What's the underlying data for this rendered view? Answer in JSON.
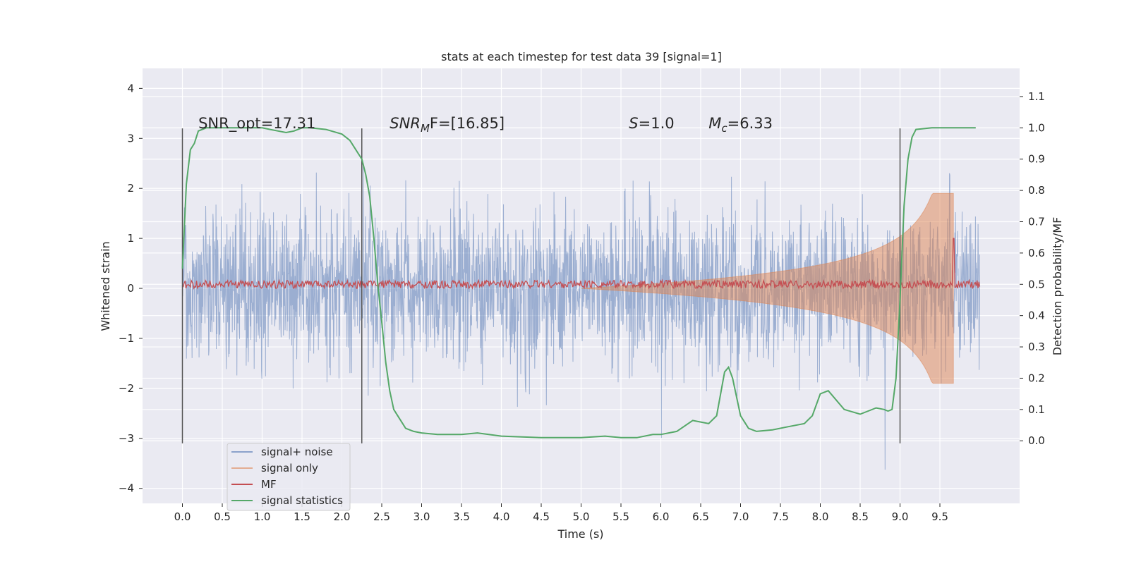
{
  "chart_data": {
    "type": "line",
    "title": "stats at each timestep for test data 39 [signal=1]",
    "xlabel": "Time (s)",
    "ylabel": "Whitened strain",
    "ylabel_right": "Detection probability/MF",
    "xlim": [
      -0.5,
      10.5
    ],
    "ylim": [
      -4.3,
      4.4
    ],
    "ylim_right": [
      -0.2,
      1.19
    ],
    "x_ticks": [
      0.0,
      0.5,
      1.0,
      1.5,
      2.0,
      2.5,
      3.0,
      3.5,
      4.0,
      4.5,
      5.0,
      5.5,
      6.0,
      6.5,
      7.0,
      7.5,
      8.0,
      8.5,
      9.0,
      9.5
    ],
    "x_tick_labels": [
      "0.0",
      "0.5",
      "1.0",
      "1.5",
      "2.0",
      "2.5",
      "3.0",
      "3.5",
      "4.0",
      "4.5",
      "5.0",
      "5.5",
      "6.0",
      "6.5",
      "7.0",
      "7.5",
      "8.0",
      "8.5",
      "9.0",
      "9.5"
    ],
    "y_ticks": [
      -4,
      -3,
      -2,
      -1,
      0,
      1,
      2,
      3,
      4
    ],
    "y_tick_labels": [
      "−4",
      "−3",
      "−2",
      "−1",
      "0",
      "1",
      "2",
      "3",
      "4"
    ],
    "y_ticks_right": [
      0.0,
      0.1,
      0.2,
      0.3,
      0.4,
      0.5,
      0.6,
      0.7,
      0.8,
      0.9,
      1.0,
      1.1
    ],
    "y_tick_labels_right": [
      "0.0",
      "0.1",
      "0.2",
      "0.3",
      "0.4",
      "0.5",
      "0.6",
      "0.7",
      "0.8",
      "0.9",
      "1.0",
      "1.1"
    ],
    "grid": true,
    "legend_position": "lower-left",
    "colors": {
      "signal_noise": "#4c72b0",
      "signal_only": "#dd8452",
      "mf": "#c44e52",
      "statistics": "#55a868",
      "vlines": "#555555",
      "background": "#eaeaf2"
    },
    "annotations": [
      {
        "text": "SNR_opt=17.31",
        "x": 0.2,
        "y": 3.2
      },
      {
        "text": "SNR",
        "sub": "M",
        "rest": "F=[16.85]",
        "italic_head": true,
        "x": 2.6,
        "y": 3.2
      },
      {
        "text": "S",
        "rest": "=1.0",
        "italic_head": true,
        "x": 5.6,
        "y": 3.2
      },
      {
        "text": "M",
        "sub": "c",
        "rest": "=6.33",
        "italic_head": true,
        "x": 6.6,
        "y": 3.2
      }
    ],
    "vertical_lines": [
      {
        "x": 0.0,
        "y0": -3.1,
        "y1": 3.2
      },
      {
        "x": 2.25,
        "y0": -3.1,
        "y1": 3.2
      },
      {
        "x": 9.0,
        "y0": -3.1,
        "y1": 3.2
      }
    ],
    "series": [
      {
        "name": "signal+ noise",
        "axis": "left",
        "t_range": [
          0.0,
          10.0
        ],
        "envelope": "random noise roughly within ±3.5"
      },
      {
        "name": "signal only",
        "axis": "left",
        "chirp": {
          "t_start": 5.0,
          "t_merge": 9.67,
          "peak": 1.9
        }
      },
      {
        "name": "MF",
        "axis": "left",
        "baseline": [
          0.0,
          0.2
        ],
        "spike": {
          "x": 9.67,
          "y": 1.0
        }
      },
      {
        "name": "signal statistics",
        "axis": "right",
        "x": [
          0.0,
          0.05,
          0.1,
          0.15,
          0.2,
          0.3,
          0.5,
          0.8,
          1.0,
          1.1,
          1.2,
          1.3,
          1.4,
          1.5,
          1.6,
          1.8,
          2.0,
          2.1,
          2.2,
          2.25,
          2.3,
          2.35,
          2.4,
          2.45,
          2.5,
          2.55,
          2.6,
          2.65,
          2.7,
          2.8,
          2.9,
          3.0,
          3.2,
          3.5,
          3.7,
          4.0,
          4.5,
          5.0,
          5.3,
          5.5,
          5.7,
          5.9,
          6.0,
          6.2,
          6.4,
          6.5,
          6.6,
          6.7,
          6.8,
          6.85,
          6.9,
          7.0,
          7.1,
          7.2,
          7.4,
          7.6,
          7.8,
          7.9,
          8.0,
          8.1,
          8.3,
          8.5,
          8.7,
          8.8,
          8.85,
          8.9,
          8.95,
          9.0,
          9.05,
          9.1,
          9.15,
          9.2,
          9.4,
          9.6,
          9.95
        ],
        "y": [
          0.55,
          0.82,
          0.93,
          0.95,
          0.99,
          1.0,
          1.0,
          1.0,
          1.0,
          0.995,
          0.99,
          0.985,
          0.99,
          1.0,
          1.0,
          0.995,
          0.98,
          0.96,
          0.92,
          0.9,
          0.85,
          0.78,
          0.65,
          0.5,
          0.38,
          0.25,
          0.16,
          0.1,
          0.08,
          0.04,
          0.03,
          0.025,
          0.02,
          0.02,
          0.025,
          0.015,
          0.01,
          0.01,
          0.015,
          0.01,
          0.01,
          0.02,
          0.02,
          0.03,
          0.065,
          0.06,
          0.055,
          0.08,
          0.22,
          0.235,
          0.2,
          0.08,
          0.04,
          0.03,
          0.035,
          0.045,
          0.055,
          0.08,
          0.15,
          0.16,
          0.1,
          0.085,
          0.105,
          0.1,
          0.095,
          0.1,
          0.2,
          0.45,
          0.75,
          0.9,
          0.97,
          0.995,
          1.0,
          1.0,
          1.0
        ]
      }
    ]
  }
}
